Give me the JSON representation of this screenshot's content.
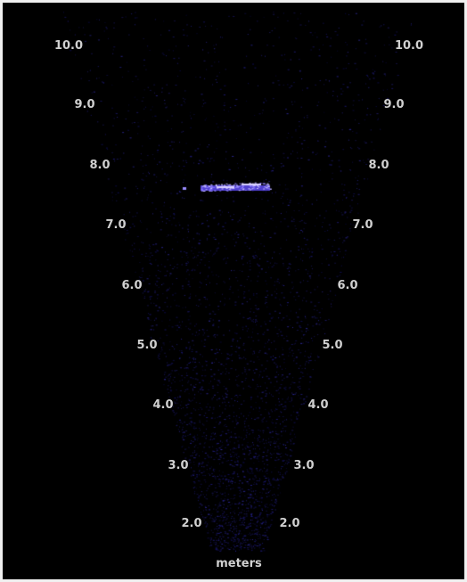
{
  "display": {
    "background_color": "#000000",
    "label_color": "#d0d0d0",
    "echo_color": "#8878ff",
    "unit_label": "meters",
    "range_labels": [
      "10.0",
      "9.0",
      "8.0",
      "7.0",
      "6.0",
      "5.0",
      "4.0",
      "3.0",
      "2.0"
    ]
  }
}
